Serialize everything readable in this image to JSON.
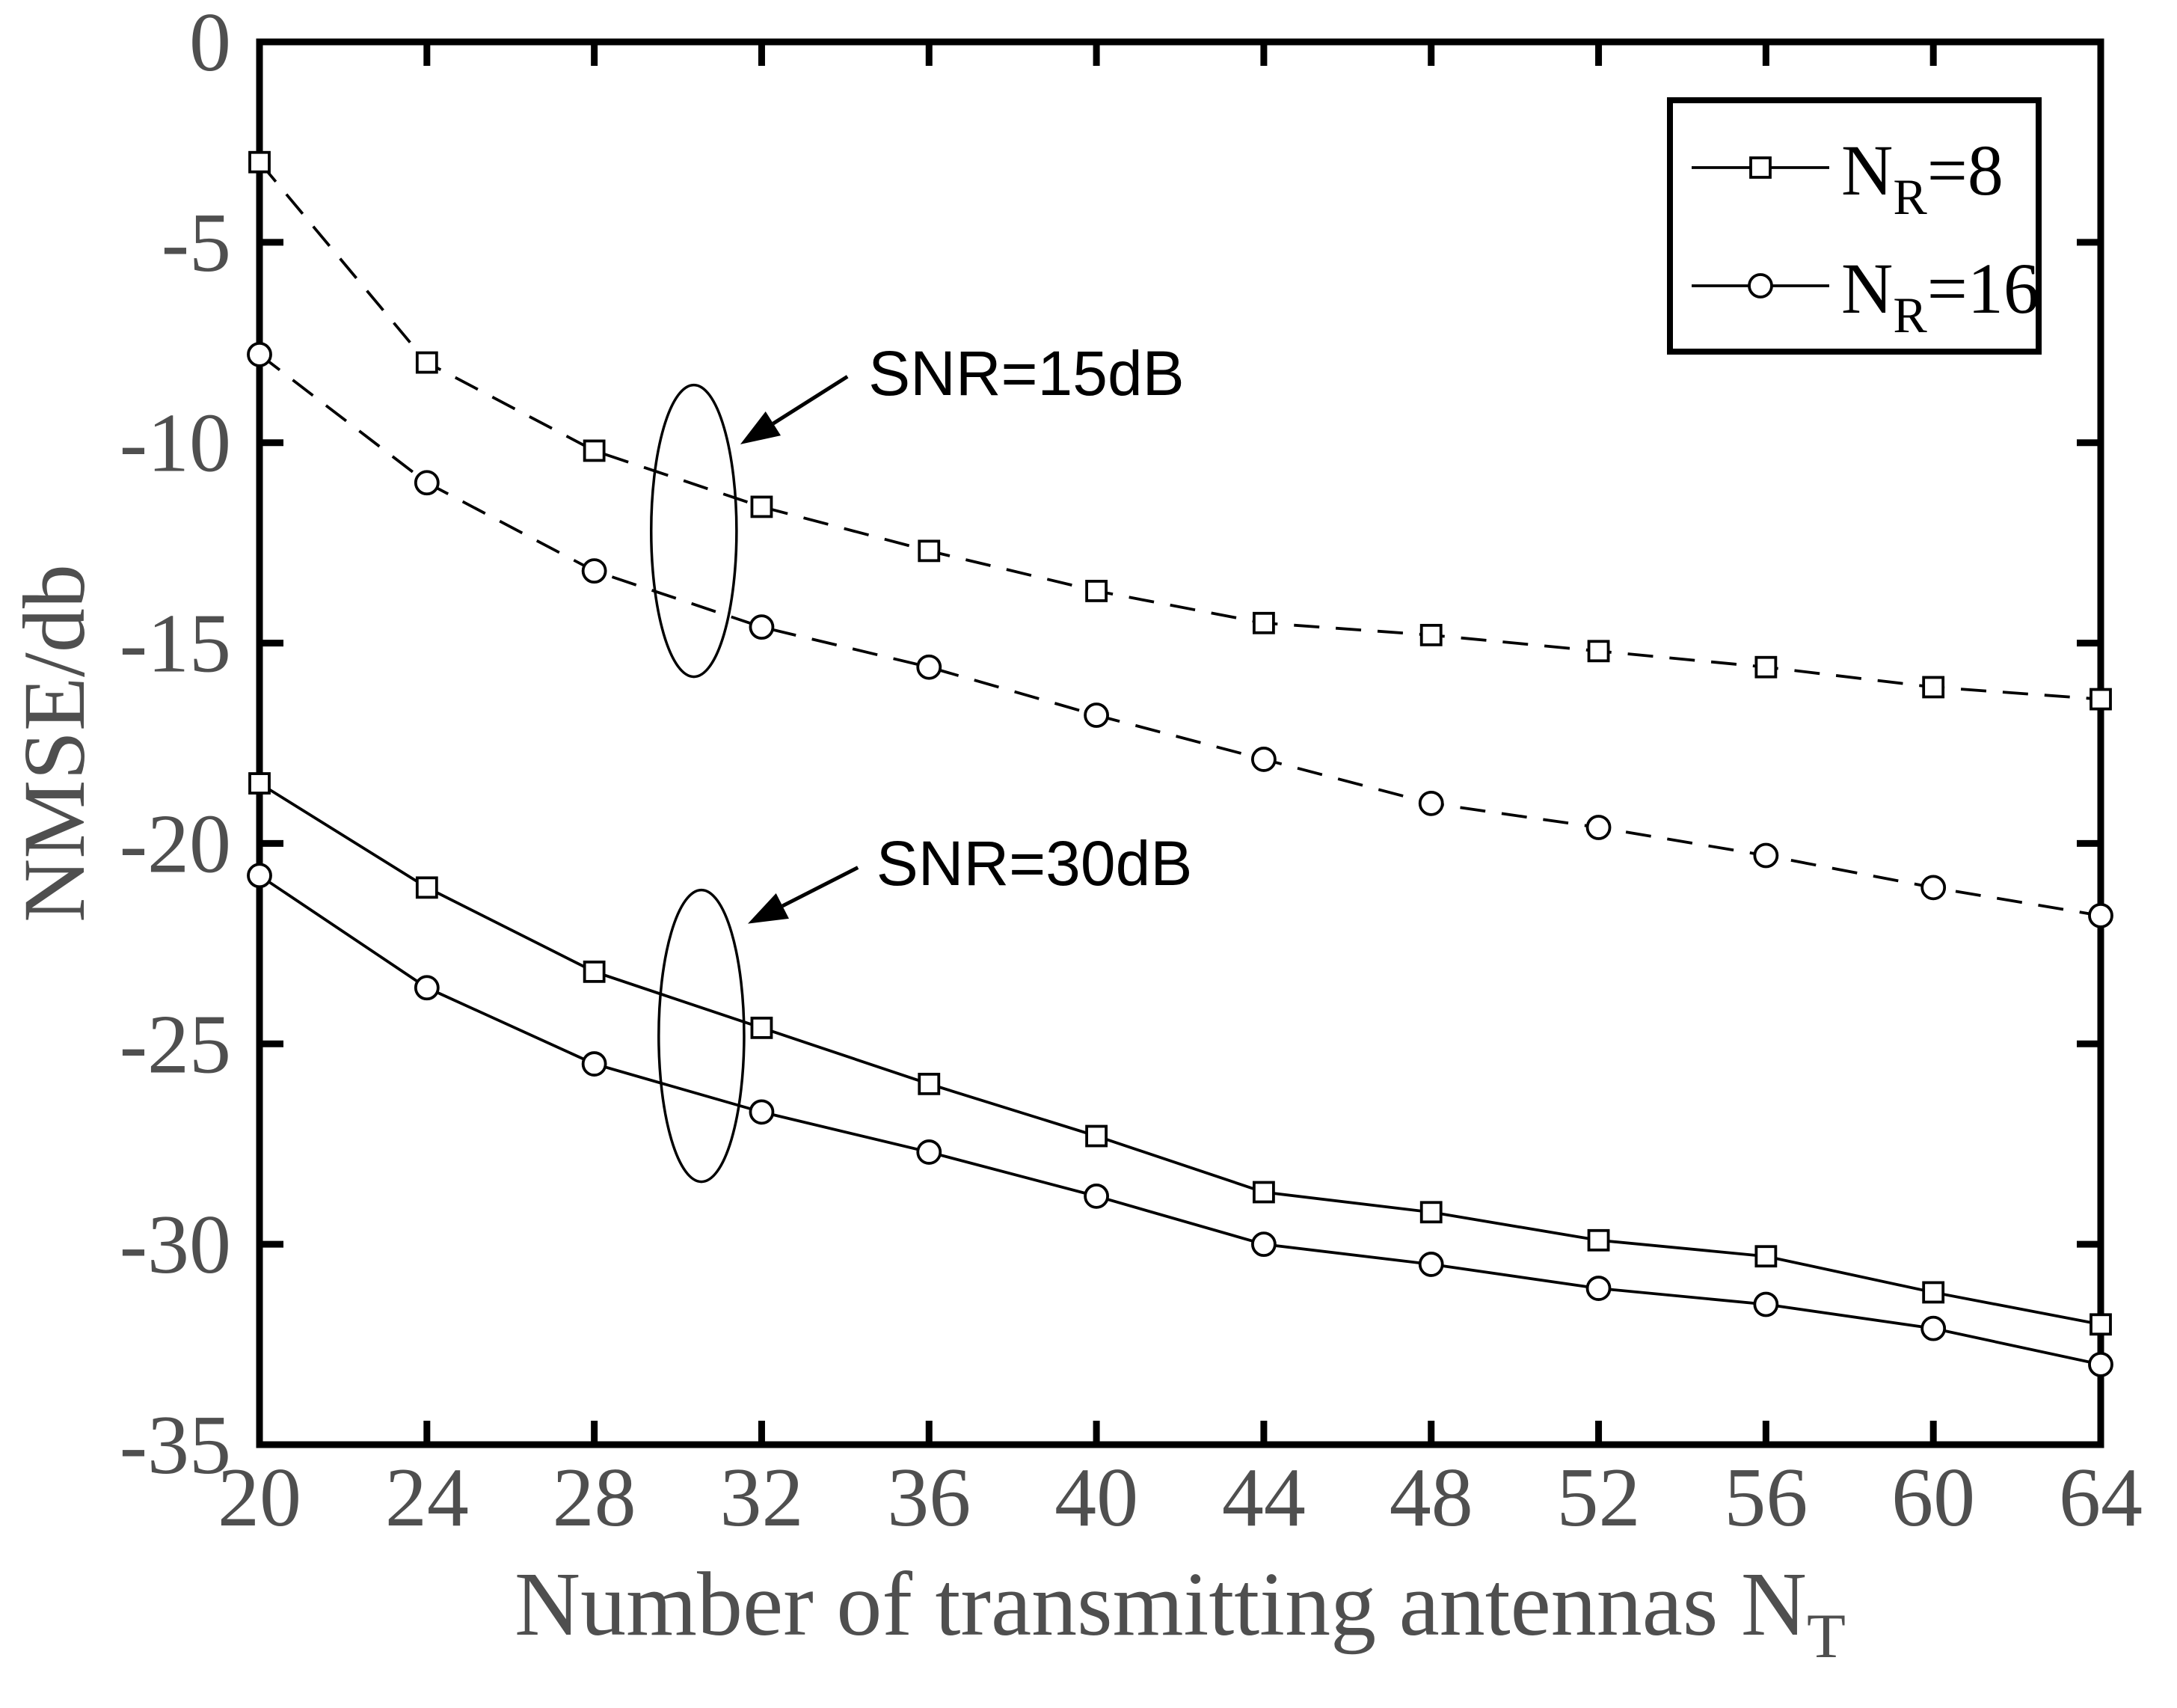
{
  "figure": {
    "background": "#ffffff",
    "curve_color": "#000000",
    "label_color": "#4f4f4f",
    "text_color": "#000000"
  },
  "chart_data": {
    "type": "line",
    "title": "",
    "xlabel": {
      "text": "Number of transmitting antennas N",
      "sub": "T"
    },
    "ylabel": "NMSE/db",
    "xlim": [
      20,
      64
    ],
    "ylim": [
      -35,
      0
    ],
    "xticks": [
      20,
      24,
      28,
      32,
      36,
      40,
      44,
      48,
      52,
      56,
      60,
      64
    ],
    "yticks": [
      0,
      -5,
      -10,
      -15,
      -20,
      -25,
      -30,
      -35
    ],
    "grid": false,
    "x": [
      20,
      24,
      28,
      32,
      36,
      40,
      44,
      48,
      52,
      56,
      60,
      64
    ],
    "series": [
      {
        "id": "nr8-snr15",
        "name": "NR=8, SNR=15dB",
        "marker": "square",
        "dash": true,
        "values": [
          -3.0,
          -8.0,
          -10.2,
          -11.6,
          -12.7,
          -13.7,
          -14.5,
          -14.8,
          -15.2,
          -15.6,
          -16.1,
          -16.4
        ]
      },
      {
        "id": "nr16-snr15",
        "name": "NR=16, SNR=15dB",
        "marker": "circle",
        "dash": true,
        "values": [
          -7.8,
          -11.0,
          -13.2,
          -14.6,
          -15.6,
          -16.8,
          -17.9,
          -19.0,
          -19.6,
          -20.3,
          -21.1,
          -21.8
        ]
      },
      {
        "id": "nr8-snr30",
        "name": "NR=8, SNR=30dB",
        "marker": "square",
        "dash": false,
        "values": [
          -18.5,
          -21.1,
          -23.2,
          -24.6,
          -26.0,
          -27.3,
          -28.7,
          -29.2,
          -29.9,
          -30.3,
          -31.2,
          -32.0
        ]
      },
      {
        "id": "nr16-snr30",
        "name": "NR=16, SNR=30dB",
        "marker": "circle",
        "dash": false,
        "values": [
          -20.8,
          -23.6,
          -25.5,
          -26.7,
          -27.7,
          -28.8,
          -30.0,
          -30.5,
          -31.1,
          -31.5,
          -32.1,
          -33.0
        ]
      }
    ],
    "legend": {
      "position": "top-right",
      "entries": [
        {
          "base": "N",
          "sub": "R",
          "rest": "=8",
          "marker": "square"
        },
        {
          "base": "N",
          "sub": "R",
          "rest": "=16",
          "marker": "circle"
        }
      ]
    },
    "annotations": [
      {
        "text": "SNR=15dB",
        "text_at": [
          34.55,
          -8.81
        ],
        "arrow_from": [
          34.05,
          -8.35
        ],
        "arrow_to": [
          31.49,
          -10.04
        ],
        "ellipse": {
          "cx": 30.38,
          "cy": -12.2,
          "rx": 1.02,
          "ry": 3.64
        }
      },
      {
        "text": "SNR=30dB",
        "text_at": [
          34.74,
          -21.04
        ],
        "arrow_from": [
          34.3,
          -20.6
        ],
        "arrow_to": [
          31.67,
          -22.0
        ],
        "ellipse": {
          "cx": 30.56,
          "cy": -24.8,
          "rx": 1.02,
          "ry": 3.64
        }
      }
    ]
  }
}
